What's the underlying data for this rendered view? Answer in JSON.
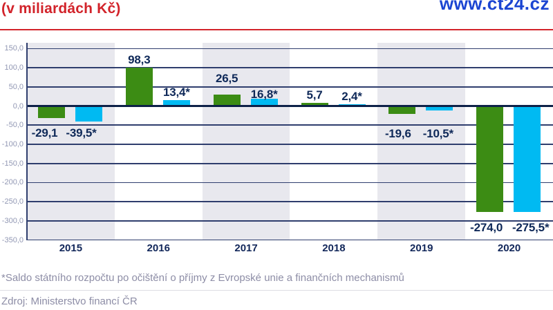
{
  "header": {
    "title": "(v miliardách Kč)",
    "site_url": "www.ct24.cz",
    "title_color": "#d2232a",
    "site_color": "#1b45d2",
    "rule_color": "#d2232a"
  },
  "chart_data": {
    "type": "bar",
    "categories": [
      "2015",
      "2016",
      "2017",
      "2018",
      "2019",
      "2020"
    ],
    "series": [
      {
        "name": "green",
        "color": "#3c8c14",
        "values": [
          -29.1,
          98.3,
          26.5,
          5.7,
          -19.6,
          -274.0
        ]
      },
      {
        "name": "blue",
        "color": "#00baf2",
        "values": [
          -39.5,
          13.4,
          16.8,
          2.4,
          -10.5,
          -275.5
        ]
      }
    ],
    "value_labels": [
      [
        "-29,1",
        "-39,5*"
      ],
      [
        "98,3",
        "13,4*"
      ],
      [
        "26,5",
        "16,8*"
      ],
      [
        "5,7",
        "2,4*"
      ],
      [
        "-19,6",
        "-10,5*"
      ],
      [
        "-274,0",
        "-275,5*"
      ]
    ],
    "y_ticks": [
      "150,0",
      "100,0",
      "50,0",
      "0,0",
      "-50,0",
      "-100,0",
      "-150,0",
      "-200,0",
      "-250,0",
      "-300,0",
      "-350,0"
    ],
    "ylim": [
      -350,
      150
    ],
    "grid": true,
    "legend": "none",
    "band_color": "#e8e8ee",
    "gridline_color": "#2e3d6d",
    "zeroline_color": "#0d2148",
    "tick_label_color": "#9298b4",
    "value_label_color": "#0e2858",
    "category_label_color": "#12275a"
  },
  "footer": {
    "footnote": "*Saldo státního rozpočtu po očištění o příjmy z Evropské unie a finančních mechanismů",
    "source": "Zdroj: Ministerstvo financí ČR",
    "text_color": "#8d8da6",
    "rule_color": "#dcdce3"
  }
}
